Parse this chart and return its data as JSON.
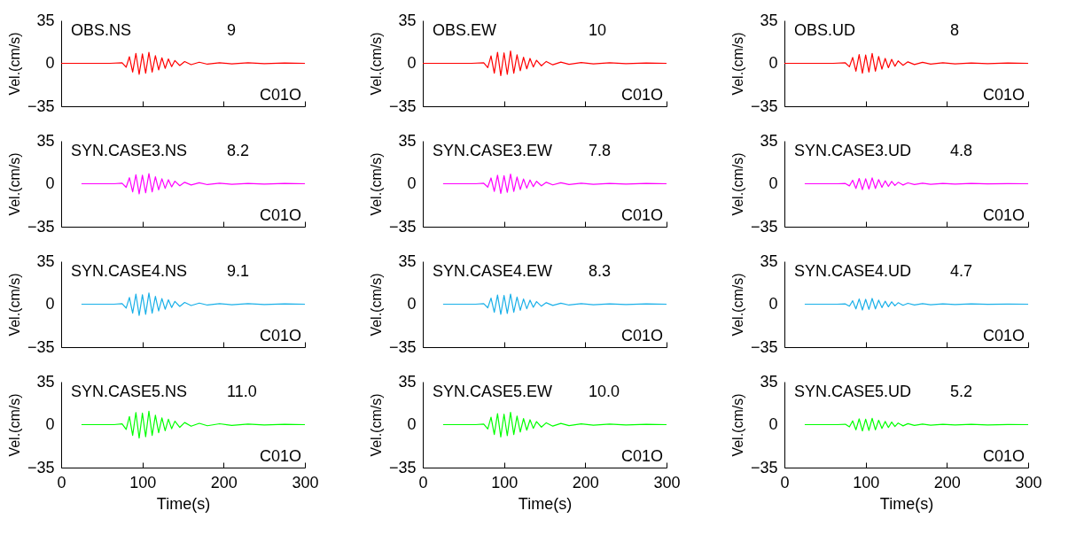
{
  "chart_data": [
    {
      "type": "line",
      "annotations": [
        "OBS.NS",
        "9",
        "C01O"
      ],
      "x": [
        0,
        30,
        60,
        75,
        80,
        84,
        88,
        92,
        96,
        100,
        104,
        108,
        112,
        116,
        120,
        124,
        128,
        132,
        136,
        140,
        146,
        152,
        160,
        170,
        180,
        195,
        210,
        230,
        250,
        275,
        300
      ],
      "series": [
        {
          "color": "#ff0000",
          "values": [
            0,
            0,
            0,
            0.5,
            -3.2,
            5.4,
            -7.2,
            8.1,
            -9,
            7.7,
            -8.1,
            9,
            -7.2,
            6.3,
            -5.4,
            4.5,
            -4.1,
            3.6,
            -2.7,
            2.3,
            -1.8,
            1.4,
            -1.1,
            0.9,
            -0.7,
            0.5,
            -0.5,
            0.4,
            -0.3,
            0.2,
            0
          ]
        }
      ],
      "xlim": [
        0,
        300
      ],
      "xticks": [
        0,
        100,
        200,
        300
      ],
      "ylim": [
        -35,
        35
      ],
      "yticks": [
        -35,
        0,
        35
      ],
      "ylabel": "Vel.(cm/s)",
      "tick_labels": "y"
    },
    {
      "type": "line",
      "annotations": [
        "OBS.EW",
        "10",
        "C01O"
      ],
      "x": [
        0,
        30,
        60,
        75,
        80,
        84,
        88,
        92,
        96,
        100,
        104,
        108,
        112,
        116,
        120,
        124,
        128,
        132,
        136,
        140,
        146,
        152,
        160,
        170,
        180,
        195,
        210,
        230,
        250,
        275,
        300
      ],
      "series": [
        {
          "color": "#ff0000",
          "values": [
            0,
            0,
            0,
            0.5,
            -3.5,
            6,
            -8,
            9,
            -10,
            8.5,
            -9,
            10,
            -8,
            7,
            -6,
            5,
            -4.5,
            4,
            -3,
            2.5,
            -2,
            1.5,
            -1.2,
            1,
            -0.8,
            0.6,
            -0.5,
            0.4,
            -0.3,
            0.2,
            0
          ]
        }
      ],
      "xlim": [
        0,
        300
      ],
      "xticks": [
        0,
        100,
        200,
        300
      ],
      "ylim": [
        -35,
        35
      ],
      "yticks": [
        -35,
        0,
        35
      ],
      "ylabel": "Vel.(cm/s)",
      "tick_labels": "y"
    },
    {
      "type": "line",
      "annotations": [
        "OBS.UD",
        "8",
        "C01O"
      ],
      "x": [
        0,
        30,
        60,
        75,
        80,
        84,
        88,
        92,
        96,
        100,
        104,
        108,
        112,
        116,
        120,
        124,
        128,
        132,
        136,
        140,
        146,
        152,
        160,
        170,
        180,
        195,
        210,
        230,
        250,
        275,
        300
      ],
      "series": [
        {
          "color": "#ff0000",
          "values": [
            0,
            0,
            0,
            0.4,
            -2.8,
            4.8,
            -6.4,
            7.2,
            -8,
            6.8,
            -7.2,
            8,
            -6.4,
            5.6,
            -4.8,
            4,
            -3.6,
            3.2,
            -2.4,
            2,
            -1.6,
            1.2,
            -1,
            0.8,
            -0.6,
            0.5,
            -0.4,
            0.3,
            -0.2,
            0.2,
            0
          ]
        }
      ],
      "xlim": [
        0,
        300
      ],
      "xticks": [
        0,
        100,
        200,
        300
      ],
      "ylim": [
        -35,
        35
      ],
      "yticks": [
        -35,
        0,
        35
      ],
      "ylabel": "Vel.(cm/s)",
      "tick_labels": "y"
    },
    {
      "type": "line",
      "annotations": [
        "SYN.CASE3.NS",
        "8.2",
        "C01O"
      ],
      "x": [
        25,
        45,
        65,
        75,
        80,
        84,
        88,
        92,
        96,
        100,
        104,
        108,
        112,
        116,
        120,
        124,
        128,
        132,
        136,
        140,
        146,
        152,
        160,
        170,
        180,
        195,
        210,
        230,
        250,
        275,
        300
      ],
      "series": [
        {
          "color": "#ff00ff",
          "values": [
            0,
            0,
            0,
            0.4,
            -2.9,
            4.9,
            -6.6,
            7.4,
            -8.2,
            7,
            -7.4,
            8.2,
            -6.6,
            5.7,
            -4.9,
            4.1,
            -3.7,
            3.3,
            -2.5,
            2.1,
            -1.6,
            1.2,
            -1,
            0.8,
            -0.7,
            0.5,
            -0.4,
            0.3,
            -0.2,
            0.2,
            0
          ]
        }
      ],
      "xlim": [
        0,
        300
      ],
      "xticks": [
        0,
        100,
        200,
        300
      ],
      "ylim": [
        -35,
        35
      ],
      "yticks": [
        -35,
        0,
        35
      ],
      "ylabel": "Vel.(cm/s)",
      "tick_labels": "y"
    },
    {
      "type": "line",
      "annotations": [
        "SYN.CASE3.EW",
        "7.8",
        "C01O"
      ],
      "x": [
        25,
        45,
        65,
        75,
        80,
        84,
        88,
        92,
        96,
        100,
        104,
        108,
        112,
        116,
        120,
        124,
        128,
        132,
        136,
        140,
        146,
        152,
        160,
        170,
        180,
        195,
        210,
        230,
        250,
        275,
        300
      ],
      "series": [
        {
          "color": "#ff00ff",
          "values": [
            0,
            0,
            0,
            0.4,
            -2.7,
            4.7,
            -6.2,
            7,
            -7.8,
            6.6,
            -7,
            7.8,
            -6.2,
            5.5,
            -4.7,
            3.9,
            -3.5,
            3.1,
            -2.3,
            2,
            -1.6,
            1.2,
            -0.9,
            0.8,
            -0.6,
            0.5,
            -0.4,
            0.3,
            -0.2,
            0.2,
            0
          ]
        }
      ],
      "xlim": [
        0,
        300
      ],
      "xticks": [
        0,
        100,
        200,
        300
      ],
      "ylim": [
        -35,
        35
      ],
      "yticks": [
        -35,
        0,
        35
      ],
      "ylabel": "Vel.(cm/s)",
      "tick_labels": "y"
    },
    {
      "type": "line",
      "annotations": [
        "SYN.CASE3.UD",
        "4.8",
        "C01O"
      ],
      "x": [
        25,
        45,
        65,
        75,
        80,
        84,
        88,
        92,
        96,
        100,
        104,
        108,
        112,
        116,
        120,
        124,
        128,
        132,
        136,
        140,
        146,
        152,
        160,
        170,
        180,
        195,
        210,
        230,
        250,
        275,
        300
      ],
      "series": [
        {
          "color": "#ff00ff",
          "values": [
            0,
            0,
            0,
            0.2,
            -1.7,
            2.9,
            -3.8,
            4.3,
            -4.8,
            4.1,
            -4.3,
            4.8,
            -3.8,
            3.4,
            -2.9,
            2.4,
            -2.2,
            1.9,
            -1.4,
            1.2,
            -1,
            0.7,
            -0.6,
            0.5,
            -0.4,
            0.3,
            -0.2,
            0.2,
            -0.1,
            0.1,
            0
          ]
        }
      ],
      "xlim": [
        0,
        300
      ],
      "xticks": [
        0,
        100,
        200,
        300
      ],
      "ylim": [
        -35,
        35
      ],
      "yticks": [
        -35,
        0,
        35
      ],
      "ylabel": "Vel.(cm/s)",
      "tick_labels": "y"
    },
    {
      "type": "line",
      "annotations": [
        "SYN.CASE4.NS",
        "9.1",
        "C01O"
      ],
      "x": [
        25,
        45,
        65,
        75,
        80,
        84,
        88,
        92,
        96,
        100,
        104,
        108,
        112,
        116,
        120,
        124,
        128,
        132,
        136,
        140,
        146,
        152,
        160,
        170,
        180,
        195,
        210,
        230,
        250,
        275,
        300
      ],
      "series": [
        {
          "color": "#1ab0e8",
          "values": [
            0,
            0,
            0,
            0.5,
            -3.2,
            5.5,
            -7.3,
            8.2,
            -9.1,
            7.7,
            -8.2,
            9.1,
            -7.3,
            6.4,
            -5.5,
            4.6,
            -4.1,
            3.6,
            -2.7,
            2.3,
            -1.8,
            1.4,
            -1.1,
            0.9,
            -0.7,
            0.5,
            -0.5,
            0.4,
            -0.3,
            0.2,
            0
          ]
        }
      ],
      "xlim": [
        0,
        300
      ],
      "xticks": [
        0,
        100,
        200,
        300
      ],
      "ylim": [
        -35,
        35
      ],
      "yticks": [
        -35,
        0,
        35
      ],
      "ylabel": "Vel.(cm/s)",
      "tick_labels": "y"
    },
    {
      "type": "line",
      "annotations": [
        "SYN.CASE4.EW",
        "8.3",
        "C01O"
      ],
      "x": [
        25,
        45,
        65,
        75,
        80,
        84,
        88,
        92,
        96,
        100,
        104,
        108,
        112,
        116,
        120,
        124,
        128,
        132,
        136,
        140,
        146,
        152,
        160,
        170,
        180,
        195,
        210,
        230,
        250,
        275,
        300
      ],
      "series": [
        {
          "color": "#1ab0e8",
          "values": [
            0,
            0,
            0,
            0.4,
            -2.9,
            5,
            -6.6,
            7.5,
            -8.3,
            7.1,
            -7.5,
            8.3,
            -6.6,
            5.8,
            -5,
            4.2,
            -3.7,
            3.3,
            -2.5,
            2.1,
            -1.7,
            1.2,
            -1,
            0.8,
            -0.7,
            0.5,
            -0.4,
            0.3,
            -0.2,
            0.2,
            0
          ]
        }
      ],
      "xlim": [
        0,
        300
      ],
      "xticks": [
        0,
        100,
        200,
        300
      ],
      "ylim": [
        -35,
        35
      ],
      "yticks": [
        -35,
        0,
        35
      ],
      "ylabel": "Vel.(cm/s)",
      "tick_labels": "y"
    },
    {
      "type": "line",
      "annotations": [
        "SYN.CASE4.UD",
        "4.7",
        "C01O"
      ],
      "x": [
        25,
        45,
        65,
        75,
        80,
        84,
        88,
        92,
        96,
        100,
        104,
        108,
        112,
        116,
        120,
        124,
        128,
        132,
        136,
        140,
        146,
        152,
        160,
        170,
        180,
        195,
        210,
        230,
        250,
        275,
        300
      ],
      "series": [
        {
          "color": "#1ab0e8",
          "values": [
            0,
            0,
            0,
            0.2,
            -1.6,
            2.8,
            -3.8,
            4.2,
            -4.7,
            4,
            -4.2,
            4.7,
            -3.8,
            3.3,
            -2.8,
            2.4,
            -2.1,
            1.9,
            -1.4,
            1.2,
            -0.9,
            0.7,
            -0.6,
            0.5,
            -0.4,
            0.3,
            -0.2,
            0.2,
            -0.1,
            0.1,
            0
          ]
        }
      ],
      "xlim": [
        0,
        300
      ],
      "xticks": [
        0,
        100,
        200,
        300
      ],
      "ylim": [
        -35,
        35
      ],
      "yticks": [
        -35,
        0,
        35
      ],
      "ylabel": "Vel.(cm/s)",
      "tick_labels": "y"
    },
    {
      "type": "line",
      "annotations": [
        "SYN.CASE5.NS",
        "11.0",
        "C01O"
      ],
      "x": [
        25,
        45,
        65,
        75,
        80,
        84,
        88,
        92,
        96,
        100,
        104,
        108,
        112,
        116,
        120,
        124,
        128,
        132,
        136,
        140,
        146,
        152,
        160,
        170,
        180,
        195,
        210,
        230,
        250,
        275,
        300
      ],
      "series": [
        {
          "color": "#00ff00",
          "values": [
            0,
            0,
            0,
            0.6,
            -3.9,
            6.6,
            -8.8,
            9.9,
            -11,
            9.4,
            -9.9,
            11,
            -8.8,
            7.7,
            -6.6,
            5.5,
            -5,
            4.4,
            -3.3,
            2.8,
            -2.2,
            1.7,
            -1.3,
            1.1,
            -0.9,
            0.7,
            -0.6,
            0.4,
            -0.3,
            0.2,
            0
          ]
        }
      ],
      "xlim": [
        0,
        300
      ],
      "xticks": [
        0,
        100,
        200,
        300
      ],
      "ylim": [
        -35,
        35
      ],
      "yticks": [
        -35,
        0,
        35
      ],
      "xlabel": "Time(s)",
      "ylabel": "Vel.(cm/s)"
    },
    {
      "type": "line",
      "annotations": [
        "SYN.CASE5.EW",
        "10.0",
        "C01O"
      ],
      "x": [
        25,
        45,
        65,
        75,
        80,
        84,
        88,
        92,
        96,
        100,
        104,
        108,
        112,
        116,
        120,
        124,
        128,
        132,
        136,
        140,
        146,
        152,
        160,
        170,
        180,
        195,
        210,
        230,
        250,
        275,
        300
      ],
      "series": [
        {
          "color": "#00ff00",
          "values": [
            0,
            0,
            0,
            0.5,
            -3.5,
            6,
            -8,
            9,
            -10,
            8.5,
            -9,
            10,
            -8,
            7,
            -6,
            5,
            -4.5,
            4,
            -3,
            2.5,
            -2,
            1.5,
            -1.2,
            1,
            -0.8,
            0.6,
            -0.5,
            0.4,
            -0.3,
            0.2,
            0
          ]
        }
      ],
      "xlim": [
        0,
        300
      ],
      "xticks": [
        0,
        100,
        200,
        300
      ],
      "ylim": [
        -35,
        35
      ],
      "yticks": [
        -35,
        0,
        35
      ],
      "xlabel": "Time(s)",
      "ylabel": "Vel.(cm/s)"
    },
    {
      "type": "line",
      "annotations": [
        "SYN.CASE5.UD",
        "5.2",
        "C01O"
      ],
      "x": [
        25,
        45,
        65,
        75,
        80,
        84,
        88,
        92,
        96,
        100,
        104,
        108,
        112,
        116,
        120,
        124,
        128,
        132,
        136,
        140,
        146,
        152,
        160,
        170,
        180,
        195,
        210,
        230,
        250,
        275,
        300
      ],
      "series": [
        {
          "color": "#00ff00",
          "values": [
            0,
            0,
            0,
            0.3,
            -1.8,
            3.1,
            -4.2,
            4.7,
            -5.2,
            4.4,
            -4.7,
            5.2,
            -4.2,
            3.6,
            -3.1,
            2.6,
            -2.3,
            2.1,
            -1.6,
            1.3,
            -1,
            0.8,
            -0.6,
            0.5,
            -0.4,
            0.3,
            -0.3,
            0.2,
            -0.2,
            0.1,
            0
          ]
        }
      ],
      "xlim": [
        0,
        300
      ],
      "xticks": [
        0,
        100,
        200,
        300
      ],
      "ylim": [
        -35,
        35
      ],
      "yticks": [
        -35,
        0,
        35
      ],
      "xlabel": "Time(s)",
      "ylabel": "Vel.(cm/s)"
    }
  ]
}
